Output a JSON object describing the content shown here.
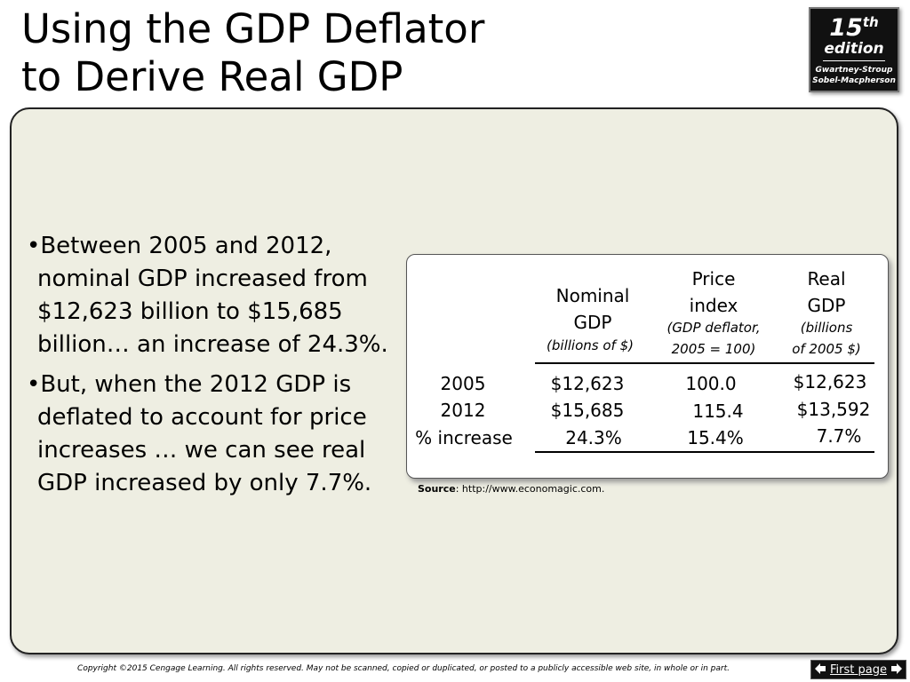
{
  "slide": {
    "title_line1": "Using the GDP Deflator",
    "title_line2": "to Derive Real GDP"
  },
  "edition_badge": {
    "number": "15",
    "suffix": "th",
    "word": "edition",
    "authors_line1": "Gwartney-Stroup",
    "authors_line2": "Sobel-Macpherson"
  },
  "bullets": [
    "Between 2005 and 2012, nominal GDP increased from $12,623 billion to $15,685 billion… an increase of 24.3%.",
    "But, when the 2012 GDP is deflated to account for price increases … we can see real GDP increased by only 7.7%."
  ],
  "table": {
    "columns": {
      "nominal": {
        "line1": "Nominal",
        "line2": "GDP",
        "note": "(billions of $)"
      },
      "price": {
        "line1": "Price",
        "line2": "index",
        "note1": "(GDP deflator,",
        "note2": "2005 = 100)"
      },
      "real": {
        "line1": "Real",
        "line2": "GDP",
        "note1": "(billions",
        "note2": "of 2005 $)"
      }
    },
    "rows": [
      {
        "label": "2005",
        "nominal": "$12,623",
        "price": "100.0",
        "real": "$12,623"
      },
      {
        "label": "2012",
        "nominal": "$15,685",
        "price": "115.4",
        "real": "$13,592"
      },
      {
        "label": "% increase",
        "nominal": "24.3%",
        "price": "15.4%",
        "real": "7.7%"
      }
    ]
  },
  "source": {
    "label": "Source",
    "text": ":  http://www.economagic.com."
  },
  "footer": {
    "copyright": "Copyright ©2015 Cengage Learning. All rights reserved. May not be scanned, copied or duplicated, or posted to a publicly accessible web site, in whole or in part.",
    "first_page_label": "First page"
  },
  "icons": {
    "nav_left": "arrow-left-icon",
    "nav_right": "arrow-right-icon"
  }
}
